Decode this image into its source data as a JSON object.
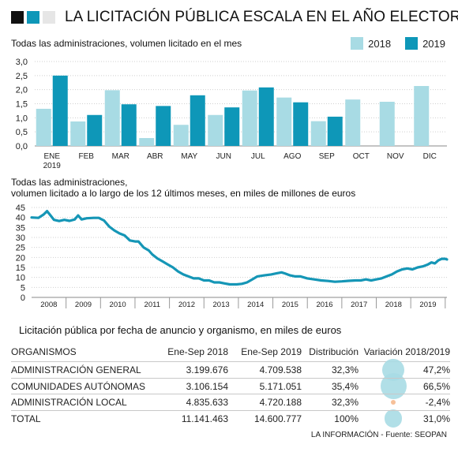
{
  "header": {
    "title": "LA LICITACIÓN PÚBLICA ESCALA EN EL AÑO ELECTORAL",
    "squares": [
      "#111111",
      "#0e97b8",
      "#e6e6e6"
    ]
  },
  "colors": {
    "light": "#a8dbe4",
    "dark": "#0e97b8",
    "bubble": "#a8dbe4",
    "bubble_neg": "#f5b98e"
  },
  "section1": {
    "subtitle": "Todas las administraciones, volumen licitado en el mes"
  },
  "section2": {
    "subtitle_line1": "Todas las administraciones,",
    "subtitle_line2": "volumen licitado a lo largo de los 12 últimos meses, en miles de millones de euros"
  },
  "section3": {
    "subtitle": "Licitación pública por fecha de anuncio y organismo, en miles de euros"
  },
  "chart_data": [
    {
      "type": "bar",
      "categories": [
        "ENE",
        "FEB",
        "MAR",
        "ABR",
        "MAY",
        "JUN",
        "JUL",
        "AGO",
        "SEP",
        "OCT",
        "NOV",
        "DIC"
      ],
      "first_label_sub": "2019",
      "series": [
        {
          "name": "2018",
          "color": "#a8dbe4",
          "values": [
            1.32,
            0.87,
            1.98,
            0.28,
            0.75,
            1.1,
            1.97,
            1.72,
            0.88,
            1.65,
            1.57,
            2.13
          ]
        },
        {
          "name": "2019",
          "color": "#0e97b8",
          "values": [
            2.5,
            1.1,
            1.48,
            1.42,
            1.8,
            1.37,
            2.08,
            1.55,
            1.04,
            null,
            null,
            null
          ]
        }
      ],
      "ylim": [
        0,
        3
      ],
      "yticks": [
        "0,0",
        "0,5",
        "1,0",
        "1,5",
        "2,0",
        "2,5",
        "3,0"
      ],
      "legend": "top-right",
      "grid": true
    },
    {
      "type": "line",
      "x_labels": [
        "2008",
        "2009",
        "2010",
        "2011",
        "2012",
        "2013",
        "2014",
        "2015",
        "2016",
        "2017",
        "2018",
        "2019"
      ],
      "x_range": [
        2007.5,
        2019.55
      ],
      "ylim": [
        0,
        45
      ],
      "yticks": [
        "0",
        "5",
        "10",
        "15",
        "20",
        "25",
        "30",
        "35",
        "40",
        "45"
      ],
      "color": "#1596b6",
      "grid": true,
      "points": [
        [
          2007.5,
          40.0
        ],
        [
          2007.7,
          39.8
        ],
        [
          2007.85,
          41.5
        ],
        [
          2007.95,
          43.2
        ],
        [
          2008.05,
          41.0
        ],
        [
          2008.15,
          38.8
        ],
        [
          2008.3,
          38.2
        ],
        [
          2008.45,
          38.8
        ],
        [
          2008.6,
          38.3
        ],
        [
          2008.75,
          39.0
        ],
        [
          2008.85,
          41.0
        ],
        [
          2008.95,
          39.0
        ],
        [
          2009.1,
          39.6
        ],
        [
          2009.3,
          39.8
        ],
        [
          2009.45,
          39.8
        ],
        [
          2009.6,
          38.5
        ],
        [
          2009.75,
          35.5
        ],
        [
          2009.9,
          33.5
        ],
        [
          2010.05,
          32.0
        ],
        [
          2010.2,
          31.0
        ],
        [
          2010.35,
          28.5
        ],
        [
          2010.5,
          28.0
        ],
        [
          2010.6,
          28.0
        ],
        [
          2010.75,
          25.0
        ],
        [
          2010.9,
          23.5
        ],
        [
          2011.0,
          21.5
        ],
        [
          2011.15,
          19.5
        ],
        [
          2011.3,
          18.0
        ],
        [
          2011.45,
          16.5
        ],
        [
          2011.6,
          15.0
        ],
        [
          2011.75,
          13.0
        ],
        [
          2011.9,
          11.5
        ],
        [
          2012.05,
          10.5
        ],
        [
          2012.2,
          9.5
        ],
        [
          2012.35,
          9.5
        ],
        [
          2012.5,
          8.5
        ],
        [
          2012.65,
          8.5
        ],
        [
          2012.8,
          7.5
        ],
        [
          2012.95,
          7.5
        ],
        [
          2013.1,
          7.0
        ],
        [
          2013.25,
          6.5
        ],
        [
          2013.45,
          6.5
        ],
        [
          2013.6,
          6.8
        ],
        [
          2013.75,
          7.5
        ],
        [
          2013.9,
          9.0
        ],
        [
          2014.05,
          10.5
        ],
        [
          2014.25,
          11.0
        ],
        [
          2014.45,
          11.5
        ],
        [
          2014.6,
          12.0
        ],
        [
          2014.75,
          12.5
        ],
        [
          2014.85,
          12.0
        ],
        [
          2015.0,
          11.0
        ],
        [
          2015.15,
          10.5
        ],
        [
          2015.3,
          10.5
        ],
        [
          2015.5,
          9.5
        ],
        [
          2015.7,
          9.0
        ],
        [
          2015.9,
          8.5
        ],
        [
          2016.1,
          8.2
        ],
        [
          2016.3,
          7.8
        ],
        [
          2016.5,
          8.0
        ],
        [
          2016.7,
          8.3
        ],
        [
          2016.9,
          8.5
        ],
        [
          2017.05,
          8.5
        ],
        [
          2017.2,
          9.0
        ],
        [
          2017.35,
          8.5
        ],
        [
          2017.5,
          9.0
        ],
        [
          2017.65,
          9.5
        ],
        [
          2017.8,
          10.5
        ],
        [
          2017.95,
          11.5
        ],
        [
          2018.1,
          13.0
        ],
        [
          2018.25,
          14.0
        ],
        [
          2018.4,
          14.5
        ],
        [
          2018.55,
          14.0
        ],
        [
          2018.7,
          15.0
        ],
        [
          2018.85,
          15.5
        ],
        [
          2019.0,
          16.5
        ],
        [
          2019.1,
          17.5
        ],
        [
          2019.2,
          17.0
        ],
        [
          2019.3,
          18.5
        ],
        [
          2019.4,
          19.3
        ],
        [
          2019.5,
          19.3
        ],
        [
          2019.55,
          19.0
        ]
      ]
    }
  ],
  "table": {
    "headers": [
      "ORGANISMOS",
      "Ene-Sep 2018",
      "Ene-Sep 2019",
      "Distribución",
      "Variación 2018/2019"
    ],
    "rows": [
      {
        "name": "ADMINISTRACIÓN GENERAL",
        "v2018": "3.199.676",
        "v2019": "4.709.538",
        "dist": "32,3%",
        "var": "47,2%",
        "var_value": 47.2
      },
      {
        "name": "COMUNIDADES AUTÓNOMAS",
        "v2018": "3.106.154",
        "v2019": "5.171.051",
        "dist": "35,4%",
        "var": "66,5%",
        "var_value": 66.5
      },
      {
        "name": "ADMINISTRACIÓN LOCAL",
        "v2018": "4.835.633",
        "v2019": "4.720.188",
        "dist": "32,3%",
        "var": "-2,4%",
        "var_value": -2.4
      },
      {
        "name": "TOTAL",
        "v2018": "11.141.463",
        "v2019": "14.600.777",
        "dist": "100%",
        "var": "31,0%",
        "var_value": 31.0
      }
    ]
  },
  "footer": {
    "source": "LA INFORMACIÓN - Fuente: SEOPAN"
  }
}
